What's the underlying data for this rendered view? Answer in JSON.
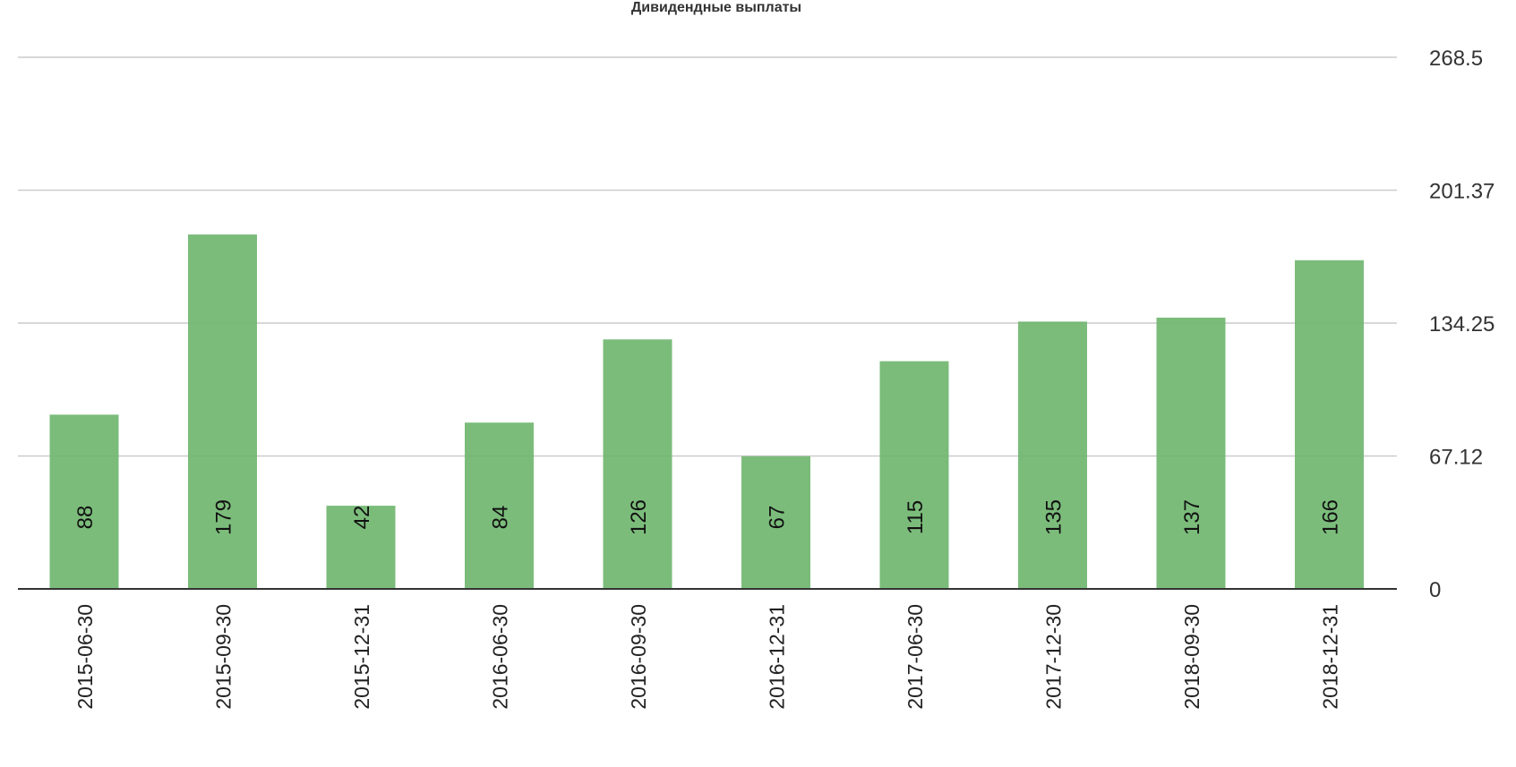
{
  "chart_data": {
    "type": "bar",
    "title": "Дивидендные выплаты",
    "categories": [
      "2015-06-30",
      "2015-09-30",
      "2015-12-31",
      "2016-06-30",
      "2016-09-30",
      "2016-12-31",
      "2017-06-30",
      "2017-12-30",
      "2018-09-30",
      "2018-12-31"
    ],
    "values": [
      88,
      179,
      42,
      84,
      126,
      67,
      115,
      135,
      137,
      166
    ],
    "y_ticks": [
      "0",
      "67.12",
      "134.25",
      "201.37",
      "268.5"
    ],
    "ylim": [
      0,
      268.5
    ],
    "grid": true,
    "y_axis_side": "right",
    "data_labels": true,
    "bar_color": "#6db56d"
  }
}
